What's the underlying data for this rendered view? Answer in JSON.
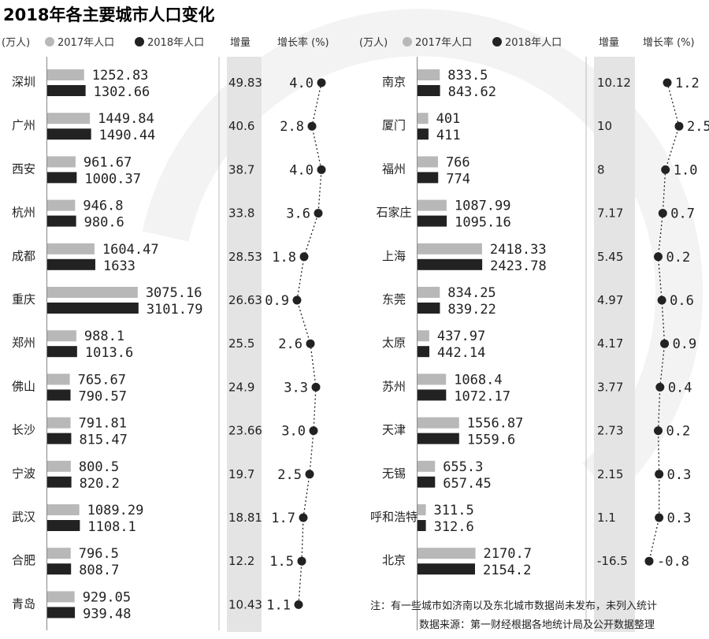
{
  "title": "2018年各主要城市人口变化",
  "unit": "(万人)",
  "legend": {
    "s2017": "2017年人口",
    "s2018": "2018年人口"
  },
  "col_increase": "增量",
  "col_rate": "增长率 (%)",
  "colors": {
    "s2017": "#b8b8b8",
    "s2018": "#222222",
    "increase_band": "#e4e4e4",
    "watermark": "#f3f3f3"
  },
  "notes": [
    "注：有一些城市如济南以及东北城市数据尚未发布，未列入统计",
    "数据来源：第一财经根据各地统计局及公开数据整理"
  ],
  "chart_data": [
    {
      "type": "bar",
      "categories": [
        "深圳",
        "广州",
        "西安",
        "杭州",
        "成都",
        "重庆",
        "郑州",
        "佛山",
        "长沙",
        "宁波",
        "武汉",
        "合肥",
        "青岛"
      ],
      "series": [
        {
          "name": "2017年人口",
          "values": [
            "1252.83",
            "1449.84",
            "961.67",
            "946.8",
            "1604.47",
            "3075.16",
            "988.1",
            "765.67",
            "791.81",
            "800.5",
            "1089.29",
            "796.5",
            "929.05"
          ]
        },
        {
          "name": "2018年人口",
          "values": [
            "1302.66",
            "1490.44",
            "1000.37",
            "980.6",
            "1633",
            "3101.79",
            "1013.6",
            "790.57",
            "815.47",
            "820.2",
            "1108.1",
            "808.7",
            "939.48"
          ]
        }
      ],
      "increase": [
        "49.83",
        "40.6",
        "38.7",
        "33.8",
        "28.53",
        "26.63",
        "25.5",
        "24.9",
        "23.66",
        "19.7",
        "18.81",
        "12.2",
        "10.43"
      ],
      "growth_rate": [
        "4.0",
        "2.8",
        "4.0",
        "3.6",
        "1.8",
        "0.9",
        "2.6",
        "3.3",
        "3.0",
        "2.5",
        "1.7",
        "1.5",
        "1.1"
      ]
    },
    {
      "type": "bar",
      "categories": [
        "南京",
        "厦门",
        "福州",
        "石家庄",
        "上海",
        "东莞",
        "太原",
        "苏州",
        "天津",
        "无锡",
        "呼和浩特",
        "北京"
      ],
      "series": [
        {
          "name": "2017年人口",
          "values": [
            "833.5",
            "401",
            "766",
            "1087.99",
            "2418.33",
            "834.25",
            "437.97",
            "1068.4",
            "1556.87",
            "655.3",
            "311.5",
            "2170.7"
          ]
        },
        {
          "name": "2018年人口",
          "values": [
            "843.62",
            "411",
            "774",
            "1095.16",
            "2423.78",
            "839.22",
            "442.14",
            "1072.17",
            "1559.6",
            "657.45",
            "312.6",
            "2154.2"
          ]
        }
      ],
      "increase": [
        "10.12",
        "10",
        "8",
        "7.17",
        "5.45",
        "4.97",
        "4.17",
        "3.77",
        "2.73",
        "2.15",
        "1.1",
        "-16.5"
      ],
      "growth_rate": [
        "1.2",
        "2.5",
        "1.0",
        "0.7",
        "0.2",
        "0.6",
        "0.9",
        "0.4",
        "0.2",
        "0.3",
        "0.3",
        "-0.8"
      ]
    }
  ]
}
